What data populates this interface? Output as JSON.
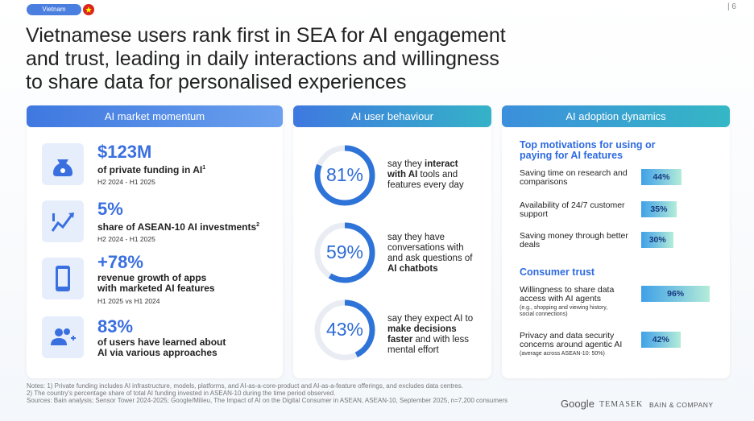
{
  "header": {
    "tag": "Vietnam",
    "page": "| 6",
    "title_lines": [
      "Vietnamese users rank first in SEA for AI engagement",
      "and trust, leading in daily interactions and willingness",
      "to share data for personalised experiences"
    ]
  },
  "market": {
    "title": "AI market momentum",
    "items": [
      {
        "value": "$123M",
        "desc": "of private funding in AI",
        "sup": "1",
        "period": "H2 2024 - H1 2025"
      },
      {
        "value": "5%",
        "desc": "share of ASEAN-10 AI investments",
        "sup": "2",
        "period": "H2 2024 - H1 2025"
      },
      {
        "value": "+78%",
        "desc": "revenue growth of apps with marketed AI features",
        "period": "H1 2025 vs H1 2024"
      },
      {
        "value": "83%",
        "desc": "of users have learned about AI via various approaches"
      }
    ]
  },
  "behaviour": {
    "title": "AI user behaviour",
    "items": [
      {
        "value": 81,
        "value_label": "81%",
        "text": [
          "say they ",
          "interact with AI",
          " tools and features every day"
        ]
      },
      {
        "value": 59,
        "value_label": "59%",
        "text": [
          "say they have conversations with and ask questions of ",
          "AI chatbots",
          ""
        ]
      },
      {
        "value": 43,
        "value_label": "43%",
        "text": [
          "say they expect AI to ",
          "make decisions faster",
          " and with less mental effort"
        ]
      }
    ]
  },
  "adoption": {
    "title": "AI adoption dynamics",
    "motivations": {
      "title": "Top motivations for using or paying for AI features",
      "items": [
        {
          "label": "Saving time on research and comparisons",
          "value": 44,
          "value_label": "44%"
        },
        {
          "label": "Availability of 24/7 customer support",
          "value": 35,
          "value_label": "35%"
        },
        {
          "label": "Saving money through better deals",
          "value": 30,
          "value_label": "30%"
        }
      ]
    },
    "trust": {
      "title": "Consumer trust",
      "items": [
        {
          "label": "Willingness to share data access with AI agents",
          "note": "(e.g., shopping and viewing history, social connections)",
          "value": 96,
          "value_label": "96%"
        },
        {
          "label": "Privacy and data security concerns around agentic AI",
          "note": "(average across ASEAN-10: 50%)",
          "value": 42,
          "value_label": "42%"
        }
      ]
    }
  },
  "notes": [
    "Notes: 1) Private funding includes AI infrastructure, models, platforms, and AI-as-a-core-product and AI-as-a-feature offerings, and excludes data centres.",
    "2) The country's percentage share of total AI funding invested in ASEAN-10 during the time period observed.",
    "Sources: Bain analysis; Sensor Tower 2024-2025; Google/Milieu, The Impact of AI on the Digital Consumer in ASEAN, ASEAN-10, September 2025, n=7,200 consumers"
  ],
  "logos": [
    "Google",
    "TEMASEK",
    "BAIN & COMPANY"
  ]
}
